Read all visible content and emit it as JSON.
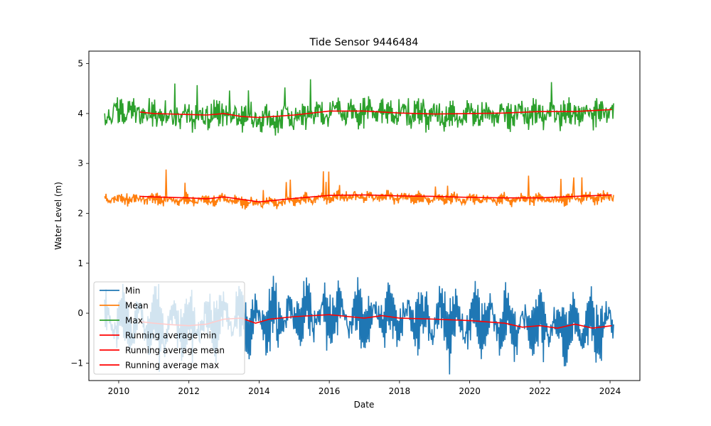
{
  "chart_data": {
    "type": "line",
    "title": "Tide Sensor 9446484",
    "xlabel": "Date",
    "ylabel": "Water Level (m)",
    "xlim": [
      2009.15,
      2024.85
    ],
    "ylim": [
      -1.35,
      5.25
    ],
    "x_ticks": [
      2010,
      2012,
      2014,
      2016,
      2018,
      2020,
      2022,
      2024
    ],
    "y_ticks": [
      -1,
      0,
      1,
      2,
      3,
      4,
      5
    ],
    "grid": false,
    "legend_position": "lower-left",
    "x_start": 2009.6,
    "x_end": 2024.1,
    "running_start": 2010.6,
    "series": [
      {
        "name": "Min",
        "color": "#1f77b4",
        "base": -0.15,
        "amp": 0.42,
        "noise": 0.22,
        "seed": 11,
        "running": [
          [
            2010.6,
            -0.17
          ],
          [
            2011.0,
            -0.2
          ],
          [
            2011.5,
            -0.23
          ],
          [
            2012.0,
            -0.25
          ],
          [
            2012.5,
            -0.22
          ],
          [
            2013.0,
            -0.12
          ],
          [
            2013.5,
            -0.1
          ],
          [
            2013.9,
            -0.2
          ],
          [
            2014.3,
            -0.12
          ],
          [
            2015.0,
            -0.07
          ],
          [
            2016.0,
            -0.03
          ],
          [
            2017.0,
            -0.1
          ],
          [
            2017.5,
            -0.05
          ],
          [
            2018.0,
            -0.1
          ],
          [
            2019.0,
            -0.12
          ],
          [
            2020.0,
            -0.15
          ],
          [
            2021.0,
            -0.2
          ],
          [
            2021.5,
            -0.28
          ],
          [
            2022.0,
            -0.25
          ],
          [
            2022.5,
            -0.3
          ],
          [
            2023.0,
            -0.22
          ],
          [
            2023.5,
            -0.3
          ],
          [
            2024.05,
            -0.25
          ]
        ]
      },
      {
        "name": "Mean",
        "color": "#ff7f0e",
        "base": 2.3,
        "amp": 0.06,
        "noise": 0.07,
        "seed": 23,
        "running": [
          [
            2010.6,
            2.34
          ],
          [
            2011.0,
            2.33
          ],
          [
            2012.0,
            2.31
          ],
          [
            2012.5,
            2.29
          ],
          [
            2013.0,
            2.33
          ],
          [
            2013.5,
            2.28
          ],
          [
            2014.0,
            2.23
          ],
          [
            2015.0,
            2.3
          ],
          [
            2016.0,
            2.36
          ],
          [
            2017.0,
            2.37
          ],
          [
            2018.0,
            2.35
          ],
          [
            2019.0,
            2.34
          ],
          [
            2020.0,
            2.32
          ],
          [
            2021.0,
            2.31
          ],
          [
            2022.0,
            2.31
          ],
          [
            2023.0,
            2.34
          ],
          [
            2024.05,
            2.37
          ]
        ]
      },
      {
        "name": "Max",
        "color": "#2ca02c",
        "base": 4.0,
        "amp": 0.12,
        "noise": 0.2,
        "seed": 37,
        "running": [
          [
            2010.6,
            4.03
          ],
          [
            2011.0,
            4.0
          ],
          [
            2012.0,
            3.98
          ],
          [
            2012.5,
            3.97
          ],
          [
            2013.0,
            4.0
          ],
          [
            2013.5,
            3.94
          ],
          [
            2014.0,
            3.92
          ],
          [
            2015.0,
            3.97
          ],
          [
            2016.0,
            4.05
          ],
          [
            2017.0,
            4.05
          ],
          [
            2018.0,
            4.01
          ],
          [
            2019.0,
            3.99
          ],
          [
            2020.0,
            4.0
          ],
          [
            2021.0,
            4.01
          ],
          [
            2022.0,
            4.04
          ],
          [
            2023.0,
            4.04
          ],
          [
            2024.05,
            4.08
          ]
        ]
      }
    ],
    "legend": [
      {
        "label": "Min",
        "color": "#1f77b4"
      },
      {
        "label": "Mean",
        "color": "#ff7f0e"
      },
      {
        "label": "Max",
        "color": "#2ca02c"
      },
      {
        "label": "Running average min",
        "color": "#ff0000"
      },
      {
        "label": "Running average mean",
        "color": "#ff0000"
      },
      {
        "label": "Running average max",
        "color": "#ff0000"
      }
    ],
    "running_color": "#ff0000"
  }
}
